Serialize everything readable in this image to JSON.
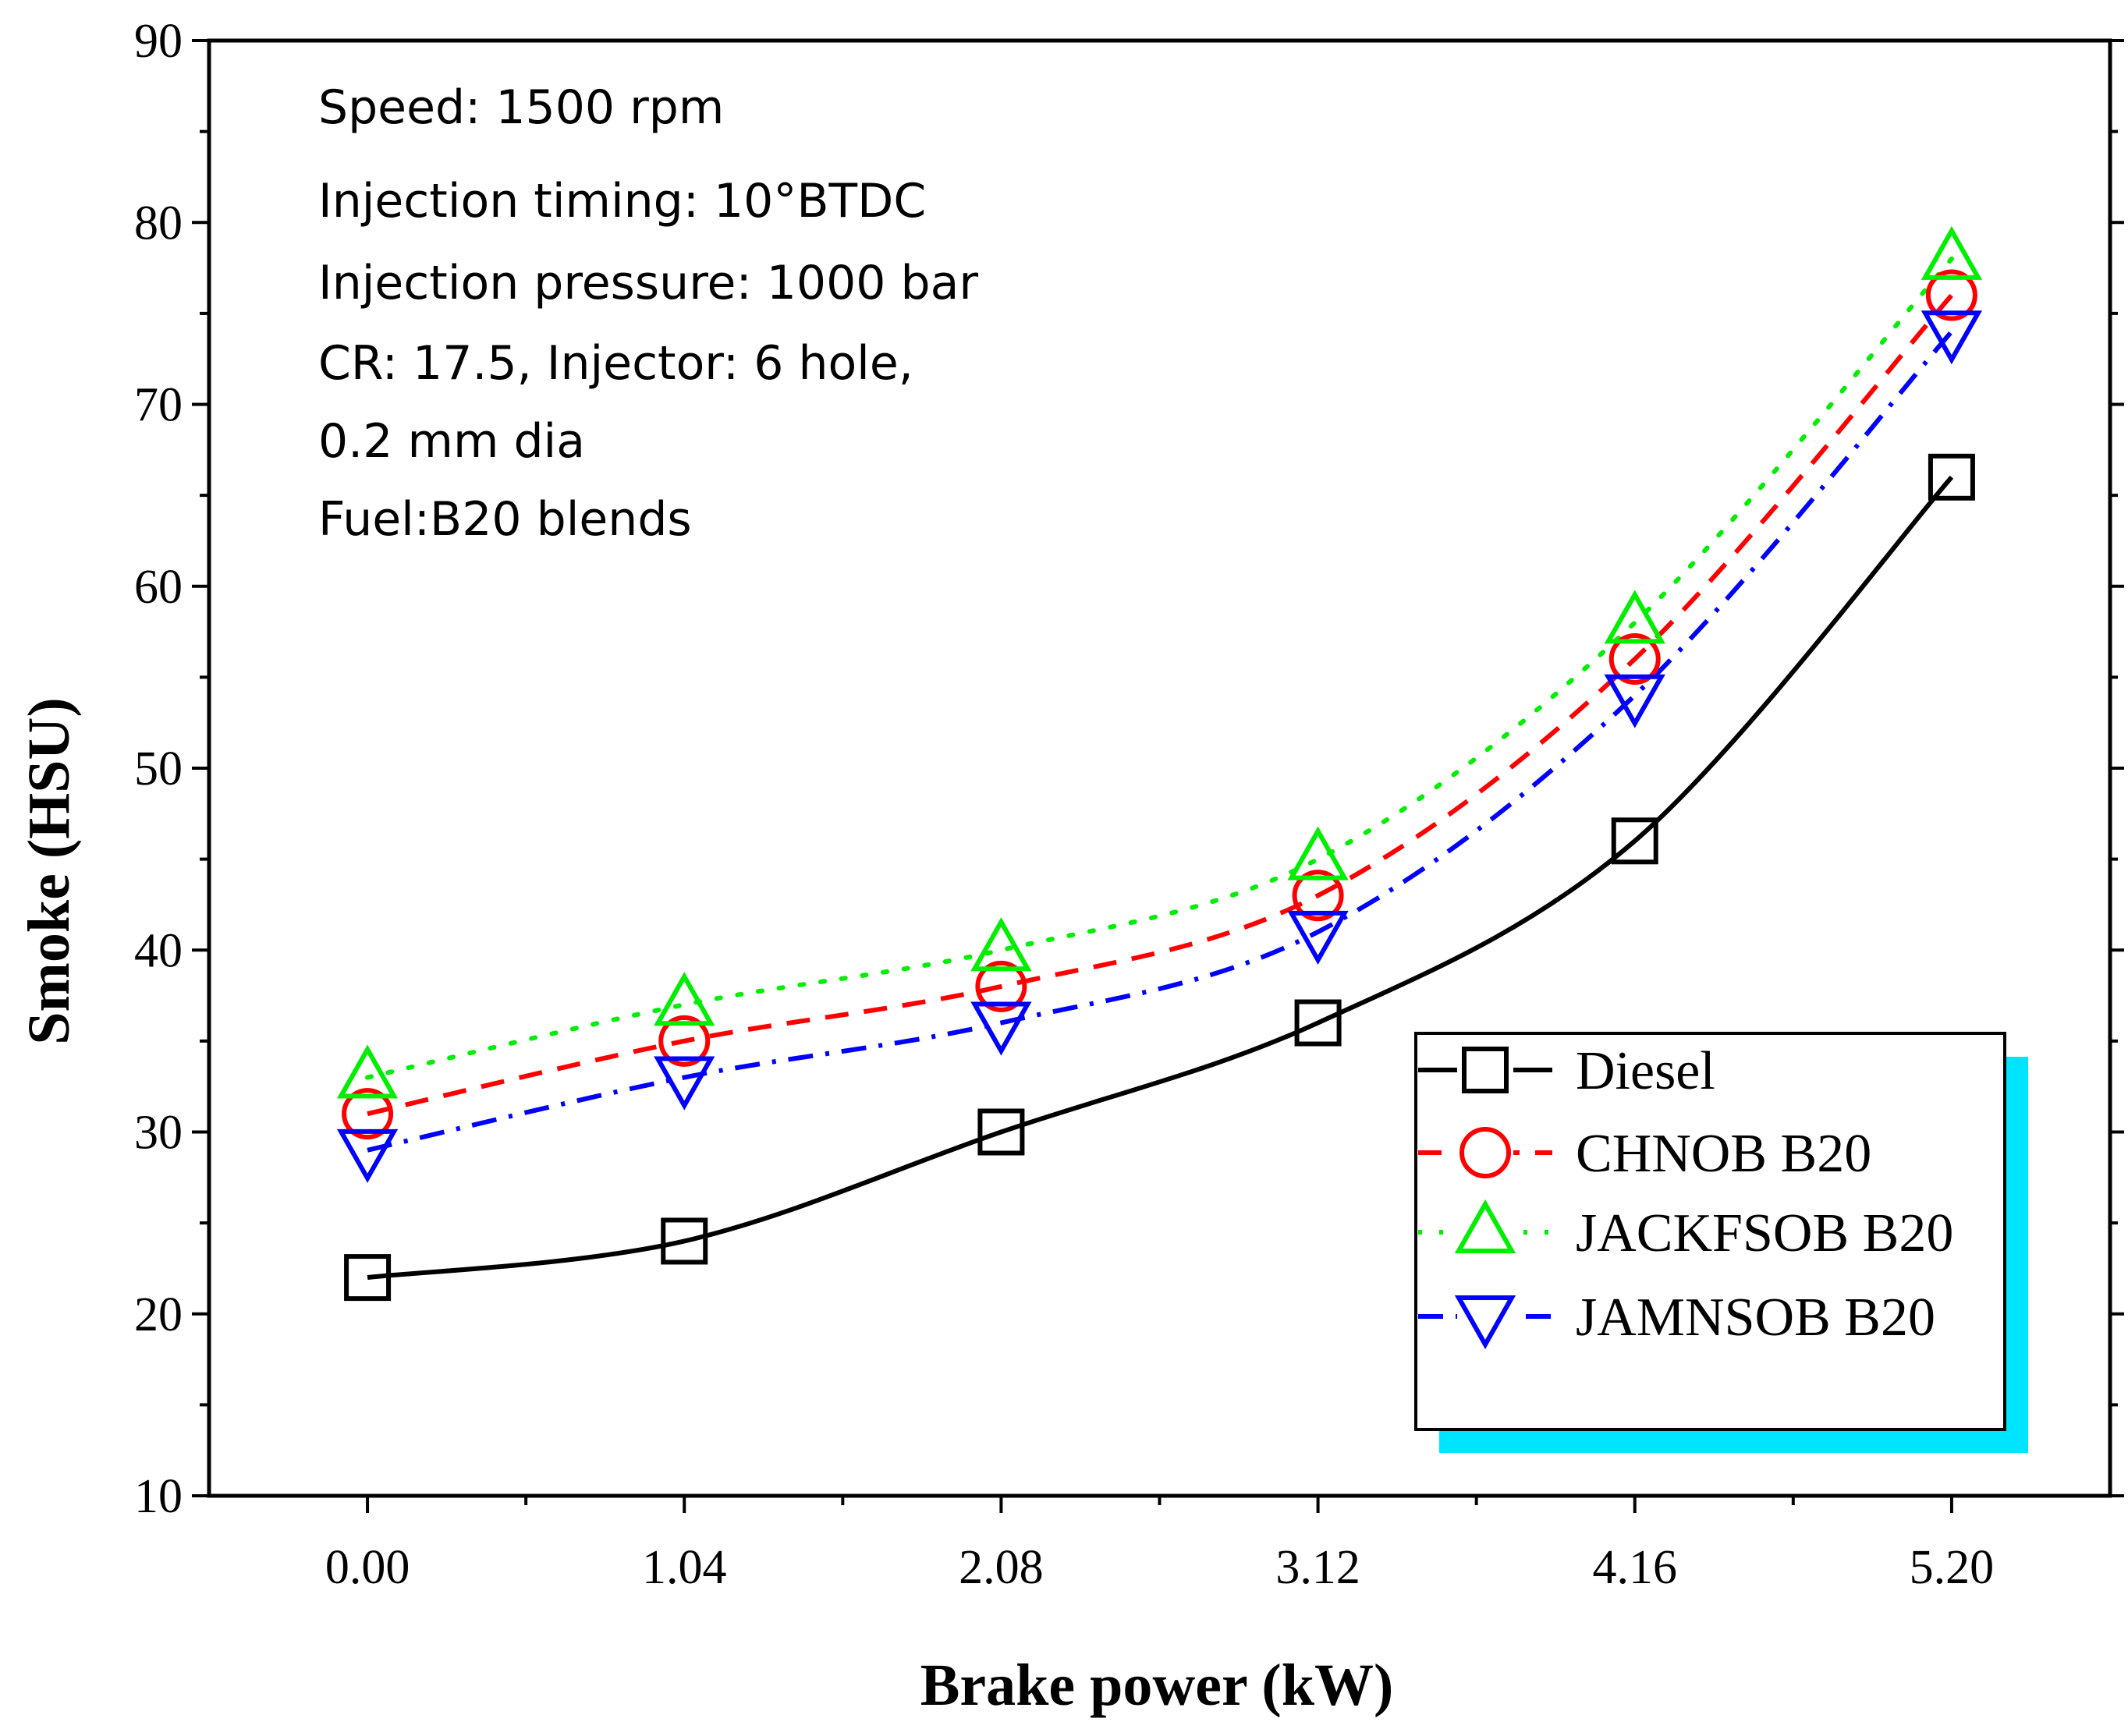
{
  "chart_data": {
    "type": "line",
    "xlabel": "Brake power (kW)",
    "ylabel": "Smoke (HSU)",
    "x": [
      0.0,
      1.04,
      2.08,
      3.12,
      4.16,
      5.2
    ],
    "x_tick_labels": [
      "0.00",
      "1.04",
      "2.08",
      "3.12",
      "4.16",
      "5.20"
    ],
    "xlim": [
      -0.52,
      5.72
    ],
    "ylim": [
      10,
      90
    ],
    "y_ticks": [
      10,
      20,
      30,
      40,
      50,
      60,
      70,
      80,
      90
    ],
    "grid": false,
    "legend_position": "bottom-right",
    "annotations": [
      "Speed: 1500 rpm",
      "Injection timing: 10°BTDC",
      "Injection pressure: 1000 bar",
      "CR: 17.5, Injector: 6 hole,",
      "0.2 mm dia",
      "Fuel:B20 blends"
    ],
    "series": [
      {
        "name": "Diesel",
        "marker": "square",
        "line_style": "solid",
        "color": "#000000",
        "values": [
          22,
          24,
          30,
          36,
          46,
          66
        ]
      },
      {
        "name": "CHNOB B20",
        "marker": "circle",
        "line_style": "dashed",
        "color": "#ff0000",
        "values": [
          31,
          35,
          38,
          43,
          56,
          76
        ]
      },
      {
        "name": "JACKFSOB B20",
        "marker": "triangle-up",
        "line_style": "dotted",
        "color": "#00ee00",
        "values": [
          33,
          37,
          40,
          45,
          58,
          78
        ]
      },
      {
        "name": "JAMNSOB B20",
        "marker": "triangle-down",
        "line_style": "dash-dot",
        "color": "#0000ff",
        "values": [
          29,
          33,
          36,
          41,
          54,
          74
        ]
      }
    ],
    "legend_shadow_color": "#00e5ff"
  }
}
